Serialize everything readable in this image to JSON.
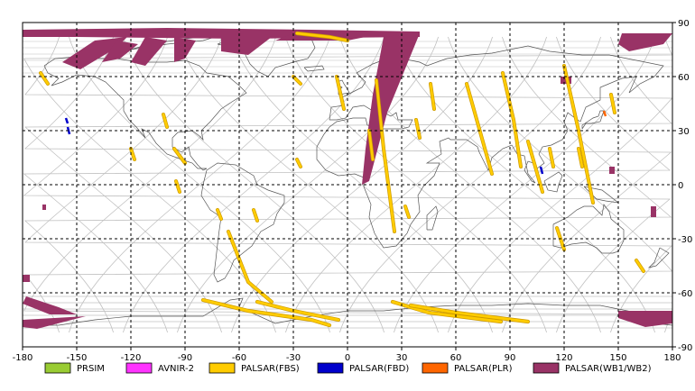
{
  "map": {
    "projection": "equirectangular",
    "lon_range": [
      -180,
      180
    ],
    "lat_range": [
      -90,
      90
    ],
    "grid": "dashed black every 30 degrees",
    "x_ticks": [
      "-180",
      "-150",
      "-120",
      "-90",
      "-60",
      "-30",
      "0",
      "30",
      "60",
      "90",
      "120",
      "150",
      "180"
    ],
    "y_ticks": [
      "90",
      "60",
      "30",
      "0",
      "-30",
      "-60",
      "-90"
    ],
    "y_tick_values": [
      90,
      60,
      30,
      0,
      -30,
      -60,
      -90
    ],
    "x_tick_values": [
      -180,
      -150,
      -120,
      -90,
      -60,
      -30,
      0,
      30,
      60,
      90,
      120,
      150,
      180
    ]
  },
  "legend": [
    {
      "label": "PRSIM",
      "color": "#99cc33"
    },
    {
      "label": "AVNIR-2",
      "color": "#ff33ff"
    },
    {
      "label": "PALSAR(FBS)",
      "color": "#ffcc00"
    },
    {
      "label": "PALSAR(FBD)",
      "color": "#0000cc"
    },
    {
      "label": "PALSAR(PLR)",
      "color": "#ff6600"
    },
    {
      "label": "PALSAR(WB1/WB2)",
      "color": "#993366"
    }
  ],
  "colors": {
    "frame": "#000000",
    "grid": "#000000",
    "orbit": "#c0c0c0",
    "coast": "#555555",
    "fbs": "#ffcc00",
    "fbs_edge": "#cc9900",
    "wb": "#993366",
    "fbd": "#0000cc",
    "plr": "#ff6600"
  }
}
